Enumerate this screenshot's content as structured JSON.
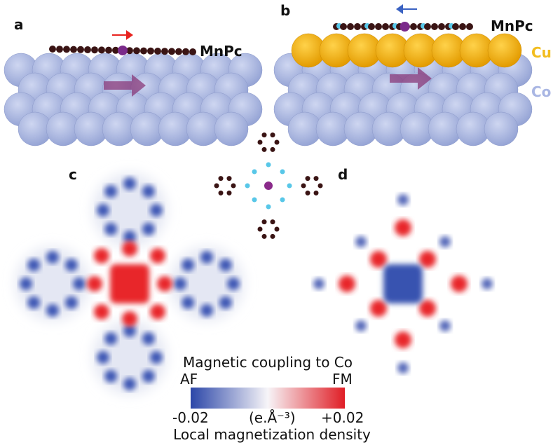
{
  "panels": {
    "a": {
      "label": "a",
      "molecule": "MnPc"
    },
    "b": {
      "label": "b",
      "molecule": "MnPc",
      "layer_top": "Cu",
      "layer_bottom": "Co"
    },
    "c": {
      "label": "c"
    },
    "d": {
      "label": "d"
    }
  },
  "colorbar": {
    "title": "Magnetic coupling to Co",
    "left_end": "AF",
    "right_end": "FM",
    "min_label": "-0.02",
    "unit": "(e.Å⁻³)",
    "max_label": "+0.02",
    "caption": "Local magnetization density"
  }
}
